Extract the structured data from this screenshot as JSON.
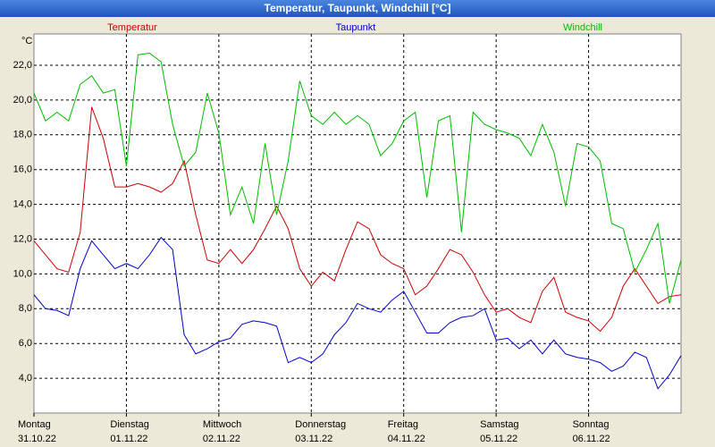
{
  "chart_data": {
    "type": "line",
    "title": "Temperatur, Taupunkt, Windchill [°C]",
    "y_unit": "°C",
    "x": [
      0,
      3,
      6,
      9,
      12,
      15,
      18,
      21,
      24,
      27,
      30,
      33,
      36,
      39,
      42,
      45,
      48,
      51,
      54,
      57,
      60,
      63,
      66,
      69,
      72,
      75,
      78,
      81,
      84,
      87,
      90,
      93,
      96,
      99,
      102,
      105,
      108,
      111,
      114,
      117,
      120,
      123,
      126,
      129,
      132,
      135,
      138,
      141,
      144,
      147,
      150,
      153,
      156,
      159,
      162,
      165,
      168
    ],
    "xlim": [
      0,
      168
    ],
    "xticks": [
      {
        "value": 0,
        "label": "Montag"
      },
      {
        "value": 24,
        "label": "Dienstag"
      },
      {
        "value": 48,
        "label": "Mittwoch"
      },
      {
        "value": 72,
        "label": "Donnerstag"
      },
      {
        "value": 96,
        "label": "Freitag"
      },
      {
        "value": 120,
        "label": "Samstag"
      },
      {
        "value": 144,
        "label": "Sonntag"
      }
    ],
    "xtick_dates": [
      "31.10.22",
      "01.11.22",
      "02.11.22",
      "03.11.22",
      "04.11.22",
      "05.11.22",
      "06.11.22"
    ],
    "ylim": [
      2.0,
      23.8
    ],
    "yticks": [
      {
        "value": 4,
        "label": "4,0"
      },
      {
        "value": 6,
        "label": "6,0"
      },
      {
        "value": 8,
        "label": "8,0"
      },
      {
        "value": 10,
        "label": "10,0"
      },
      {
        "value": 12,
        "label": "12,0"
      },
      {
        "value": 14,
        "label": "14,0"
      },
      {
        "value": 16,
        "label": "16,0"
      },
      {
        "value": 18,
        "label": "18,0"
      },
      {
        "value": 20,
        "label": "20,0"
      },
      {
        "value": 22,
        "label": "22,0"
      }
    ],
    "grid": true,
    "series": [
      {
        "name": "Temperatur",
        "color": "#cc0000",
        "values": [
          11.9,
          11.1,
          10.3,
          10.1,
          12.4,
          19.6,
          17.8,
          15.0,
          15.0,
          15.2,
          15.0,
          14.7,
          15.2,
          16.5,
          13.4,
          10.8,
          10.6,
          11.4,
          10.6,
          11.4,
          12.6,
          13.9,
          12.6,
          10.3,
          9.3,
          10.1,
          9.6,
          11.4,
          13.0,
          12.6,
          11.1,
          10.6,
          10.3,
          8.8,
          9.3,
          10.3,
          11.4,
          11.1,
          10.1,
          8.8,
          7.8,
          8.0,
          7.5,
          7.2,
          9.0,
          9.8,
          7.8,
          7.5,
          7.3,
          6.7,
          7.5,
          9.3,
          10.3,
          9.3,
          8.3,
          8.7,
          8.8
        ]
      },
      {
        "name": "Taupunkt",
        "color": "#0000cc",
        "values": [
          8.8,
          8.0,
          7.9,
          7.6,
          10.3,
          11.9,
          11.1,
          10.3,
          10.6,
          10.3,
          11.1,
          12.1,
          11.4,
          6.5,
          5.4,
          5.7,
          6.1,
          6.3,
          7.1,
          7.3,
          7.2,
          7.0,
          4.9,
          5.2,
          4.9,
          5.4,
          6.5,
          7.2,
          8.3,
          8.0,
          7.8,
          8.5,
          9.0,
          7.8,
          6.6,
          6.6,
          7.2,
          7.5,
          7.6,
          8.0,
          6.2,
          6.3,
          5.7,
          6.2,
          5.4,
          6.2,
          5.4,
          5.2,
          5.1,
          4.9,
          4.4,
          4.7,
          5.5,
          5.2,
          3.4,
          4.2,
          5.3
        ]
      },
      {
        "name": "Windchill",
        "color": "#00bb00",
        "values": [
          20.4,
          18.8,
          19.3,
          18.8,
          20.9,
          21.4,
          20.4,
          20.6,
          16.2,
          22.6,
          22.7,
          22.2,
          18.6,
          16.2,
          17.0,
          20.4,
          18.1,
          13.4,
          15.0,
          12.9,
          17.5,
          13.4,
          16.5,
          21.1,
          19.1,
          18.6,
          19.3,
          18.6,
          19.1,
          18.6,
          16.8,
          17.5,
          18.8,
          19.3,
          14.4,
          18.8,
          19.1,
          12.4,
          19.3,
          18.6,
          18.3,
          18.1,
          17.8,
          16.8,
          18.6,
          17.0,
          13.9,
          17.5,
          17.3,
          16.5,
          12.9,
          12.6,
          10.1,
          11.4,
          12.9,
          8.3,
          10.8
        ]
      }
    ]
  }
}
